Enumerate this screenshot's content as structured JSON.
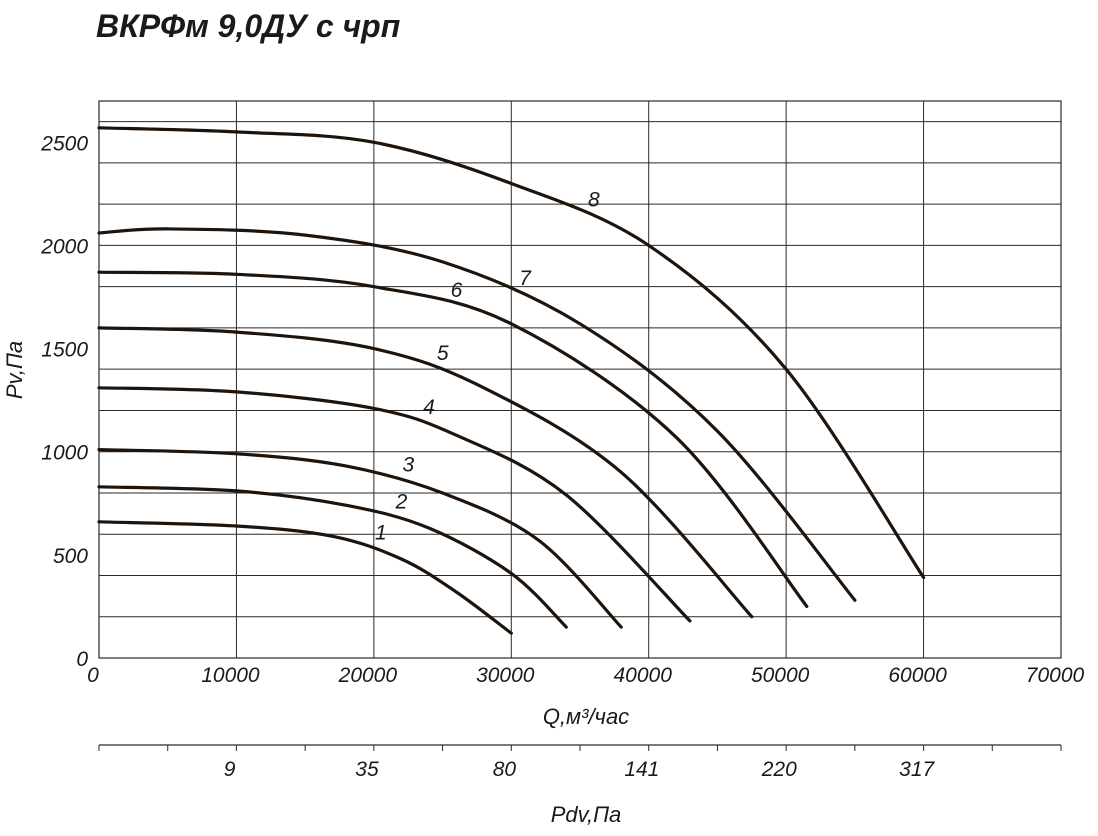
{
  "title": "ВКРФм 9,0ДУ с чрп",
  "chart_data": {
    "type": "line",
    "title": "ВКРФм 9,0ДУ с чрп",
    "xlabel": "Q,м³/час",
    "ylabel": "Pv,Па",
    "xlim": [
      0,
      70000
    ],
    "ylim": [
      0,
      2700
    ],
    "x_ticks": [
      "0",
      "10000",
      "20000",
      "30000",
      "40000",
      "50000",
      "60000",
      "70000"
    ],
    "y_ticks": [
      "0",
      "500",
      "1000",
      "1500",
      "2000",
      "2500"
    ],
    "grid": true,
    "secondary_axis": {
      "label": "Pdv,Па",
      "ticks": [
        {
          "q": 9500,
          "label": "9"
        },
        {
          "q": 19500,
          "label": "35"
        },
        {
          "q": 29500,
          "label": "80"
        },
        {
          "q": 39500,
          "label": "141"
        },
        {
          "q": 49500,
          "label": "220"
        },
        {
          "q": 59500,
          "label": "317"
        }
      ]
    },
    "series": [
      {
        "name": "1",
        "x": [
          0,
          10000,
          17000,
          22000,
          26000,
          30000
        ],
        "y": [
          660,
          640,
          590,
          480,
          320,
          120
        ]
      },
      {
        "name": "2",
        "x": [
          0,
          10000,
          18000,
          24000,
          30000,
          34000
        ],
        "y": [
          830,
          810,
          740,
          630,
          410,
          150
        ]
      },
      {
        "name": "3",
        "x": [
          0,
          10000,
          18000,
          25000,
          32000,
          38000
        ],
        "y": [
          1010,
          990,
          930,
          800,
          570,
          150
        ]
      },
      {
        "name": "4",
        "x": [
          0,
          10000,
          20000,
          26000,
          34000,
          43000
        ],
        "y": [
          1310,
          1290,
          1210,
          1080,
          790,
          180
        ]
      },
      {
        "name": "5",
        "x": [
          0,
          10000,
          20000,
          28000,
          38000,
          47500
        ],
        "y": [
          1600,
          1580,
          1500,
          1310,
          900,
          200
        ]
      },
      {
        "name": "6",
        "x": [
          0,
          10000,
          20000,
          30000,
          42000,
          51500
        ],
        "y": [
          1870,
          1860,
          1800,
          1620,
          1070,
          250
        ]
      },
      {
        "name": "7",
        "x": [
          0,
          5000,
          15000,
          25000,
          35000,
          45000,
          55000
        ],
        "y": [
          2060,
          2080,
          2050,
          1920,
          1620,
          1100,
          280
        ]
      },
      {
        "name": "8",
        "x": [
          0,
          10000,
          20000,
          30000,
          40000,
          50000,
          60000
        ],
        "y": [
          2570,
          2550,
          2500,
          2300,
          2000,
          1400,
          390
        ]
      }
    ]
  },
  "colors": {
    "curve": "#1e140c",
    "grid": "#2a2a2a",
    "text": "#1a1a1a"
  }
}
